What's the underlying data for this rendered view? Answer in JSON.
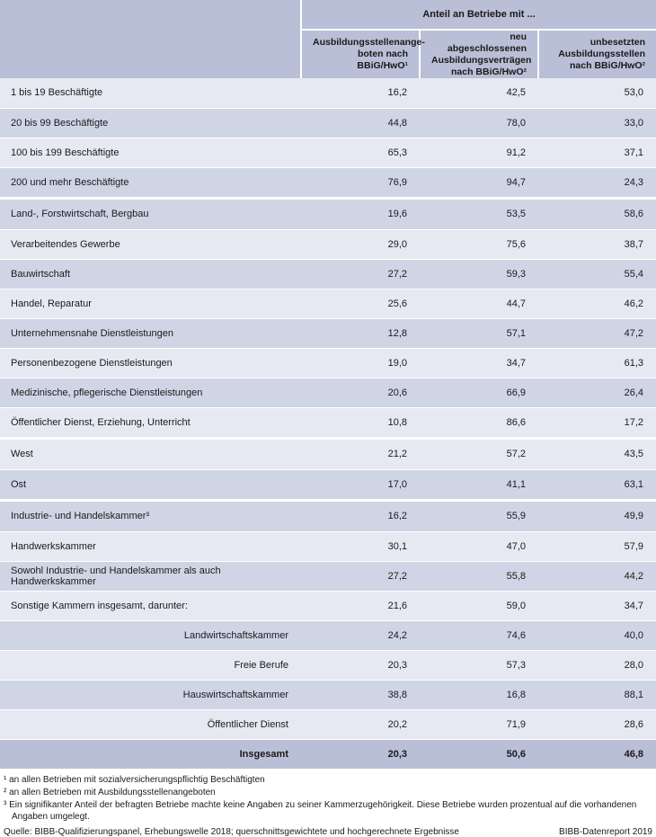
{
  "header": {
    "group_title": "Anteil an Betriebe mit ...",
    "columns": [
      "Ausbildungsstellenange-\nboten nach BBiG/HwO¹",
      "neu abgeschlossenen\nAusbildungsverträgen\nnach BBiG/HwO²",
      "unbesetzten\nAusbildungsstellen\nnach BBiG/HwO²"
    ]
  },
  "groups": [
    {
      "rows": [
        {
          "label": "1 bis 19 Beschäftigte",
          "values": [
            "16,2",
            "42,5",
            "53,0"
          ]
        },
        {
          "label": "20 bis 99 Beschäftigte",
          "values": [
            "44,8",
            "78,0",
            "33,0"
          ]
        },
        {
          "label": "100 bis 199 Beschäftigte",
          "values": [
            "65,3",
            "91,2",
            "37,1"
          ]
        },
        {
          "label": "200 und mehr Beschäftigte",
          "values": [
            "76,9",
            "94,7",
            "24,3"
          ]
        }
      ]
    },
    {
      "rows": [
        {
          "label": "Land-, Forstwirtschaft, Bergbau",
          "values": [
            "19,6",
            "53,5",
            "58,6"
          ]
        },
        {
          "label": "Verarbeitendes Gewerbe",
          "values": [
            "29,0",
            "75,6",
            "38,7"
          ]
        },
        {
          "label": "Bauwirtschaft",
          "values": [
            "27,2",
            "59,3",
            "55,4"
          ]
        },
        {
          "label": "Handel, Reparatur",
          "values": [
            "25,6",
            "44,7",
            "46,2"
          ]
        },
        {
          "label": "Unternehmensnahe Dienstleistungen",
          "values": [
            "12,8",
            "57,1",
            "47,2"
          ]
        },
        {
          "label": "Personenbezogene Dienstleistungen",
          "values": [
            "19,0",
            "34,7",
            "61,3"
          ]
        },
        {
          "label": "Medizinische, pflegerische Dienstleistungen",
          "values": [
            "20,6",
            "66,9",
            "26,4"
          ]
        },
        {
          "label": "Öffentlicher Dienst, Erziehung, Unterricht",
          "values": [
            "10,8",
            "86,6",
            "17,2"
          ]
        }
      ]
    },
    {
      "rows": [
        {
          "label": "West",
          "values": [
            "21,2",
            "57,2",
            "43,5"
          ]
        },
        {
          "label": "Ost",
          "values": [
            "17,0",
            "41,1",
            "63,1"
          ]
        }
      ]
    },
    {
      "rows": [
        {
          "label": "Industrie- und Handelskammer³",
          "values": [
            "16,2",
            "55,9",
            "49,9"
          ]
        },
        {
          "label": "Handwerkskammer",
          "values": [
            "30,1",
            "47,0",
            "57,9"
          ]
        },
        {
          "label": "Sowohl Industrie- und Handelskammer als auch Handwerkskammer",
          "values": [
            "27,2",
            "55,8",
            "44,2"
          ]
        },
        {
          "label": "Sonstige Kammern insgesamt, darunter:",
          "values": [
            "21,6",
            "59,0",
            "34,7"
          ]
        },
        {
          "label": "Landwirtschaftskammer",
          "values": [
            "24,2",
            "74,6",
            "40,0"
          ],
          "indent": true
        },
        {
          "label": "Freie Berufe",
          "values": [
            "20,3",
            "57,3",
            "28,0"
          ],
          "indent": true
        },
        {
          "label": "Hauswirtschaftskammer",
          "values": [
            "38,8",
            "16,8",
            "88,1"
          ],
          "indent": true
        },
        {
          "label": "Öffentlicher Dienst",
          "values": [
            "20,2",
            "71,9",
            "28,6"
          ],
          "indent": true
        }
      ]
    }
  ],
  "total": {
    "label": "Insgesamt",
    "values": [
      "20,3",
      "50,6",
      "46,8"
    ]
  },
  "footnotes": [
    "¹ an allen Betrieben mit sozialversicherungspflichtig Beschäftigten",
    "² an allen Betrieben mit Ausbildungsstellenangeboten",
    "³ Ein signifikanter Anteil der befragten Betriebe machte keine Angaben zu seiner Kammerzugehörigkeit. Diese Betriebe wurden prozentual auf die vorhandenen Angaben umgelegt."
  ],
  "source": "Quelle:  BIBB-Qualifizierungspanel, Erhebungswelle 2018; querschnittsgewichtete und hochgerechnete Ergebnisse",
  "credit": "BIBB-Datenreport 2019",
  "colors": {
    "header": "#b9bfd6",
    "row_light": "#e7e9f2",
    "row_dark": "#d0d5e6"
  }
}
